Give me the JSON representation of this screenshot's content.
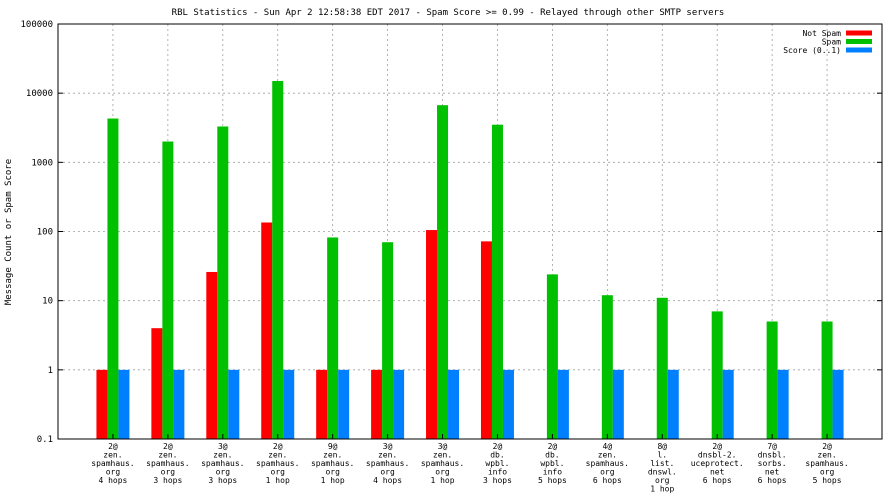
{
  "chart_data": {
    "type": "bar",
    "title": "RBL Statistics - Sun Apr  2 12:58:38 EDT 2017 - Spam Score >= 0.99 - Relayed through other SMTP servers",
    "ylabel": "Message Count or Spam Score",
    "xlabel": "",
    "yscale": "log",
    "ylim": [
      0.1,
      100000
    ],
    "yticks": [
      "0.1",
      "1",
      "10",
      "100",
      "1000",
      "10000",
      "100000"
    ],
    "grid": true,
    "legend_position": "top-right",
    "categories": [
      [
        "2@",
        "zen.",
        "spamhaus.",
        "org",
        "4 hops"
      ],
      [
        "2@",
        "zen.",
        "spamhaus.",
        "org",
        "3 hops"
      ],
      [
        "3@",
        "zen.",
        "spamhaus.",
        "org",
        "3 hops"
      ],
      [
        "2@",
        "zen.",
        "spamhaus.",
        "org",
        "1 hop"
      ],
      [
        "9@",
        "zen.",
        "spamhaus.",
        "org",
        "1 hop"
      ],
      [
        "3@",
        "zen.",
        "spamhaus.",
        "org",
        "4 hops"
      ],
      [
        "3@",
        "zen.",
        "spamhaus.",
        "org",
        "1 hop"
      ],
      [
        "2@",
        "db.",
        "wpbl.",
        "info",
        "3 hops"
      ],
      [
        "2@",
        "db.",
        "wpbl.",
        "info",
        "5 hops"
      ],
      [
        "4@",
        "zen.",
        "spamhaus.",
        "org",
        "6 hops"
      ],
      [
        "8@",
        "l.",
        "list.",
        "dnswl.",
        "org",
        "1 hop"
      ],
      [
        "2@",
        "dnsbl-2.",
        "uceprotect.",
        "net",
        "6 hops"
      ],
      [
        "7@",
        "dnsbl.",
        "sorbs.",
        "net",
        "6 hops"
      ],
      [
        "2@",
        "zen.",
        "spamhaus.",
        "org",
        "5 hops"
      ]
    ],
    "series": [
      {
        "name": "Not Spam",
        "color": "#ff0000",
        "values": [
          1,
          4,
          26,
          135,
          1,
          1,
          105,
          72,
          null,
          null,
          null,
          null,
          null,
          null
        ]
      },
      {
        "name": "Spam",
        "color": "#00c000",
        "values": [
          4300,
          2000,
          3300,
          15000,
          82,
          70,
          6700,
          3500,
          24,
          12,
          11,
          7,
          5,
          5
        ]
      },
      {
        "name": "Score (0..1)",
        "color": "#0080ff",
        "values": [
          1,
          1,
          1,
          1,
          1,
          1,
          1,
          1,
          1,
          1,
          1,
          1,
          1,
          1
        ]
      }
    ]
  }
}
